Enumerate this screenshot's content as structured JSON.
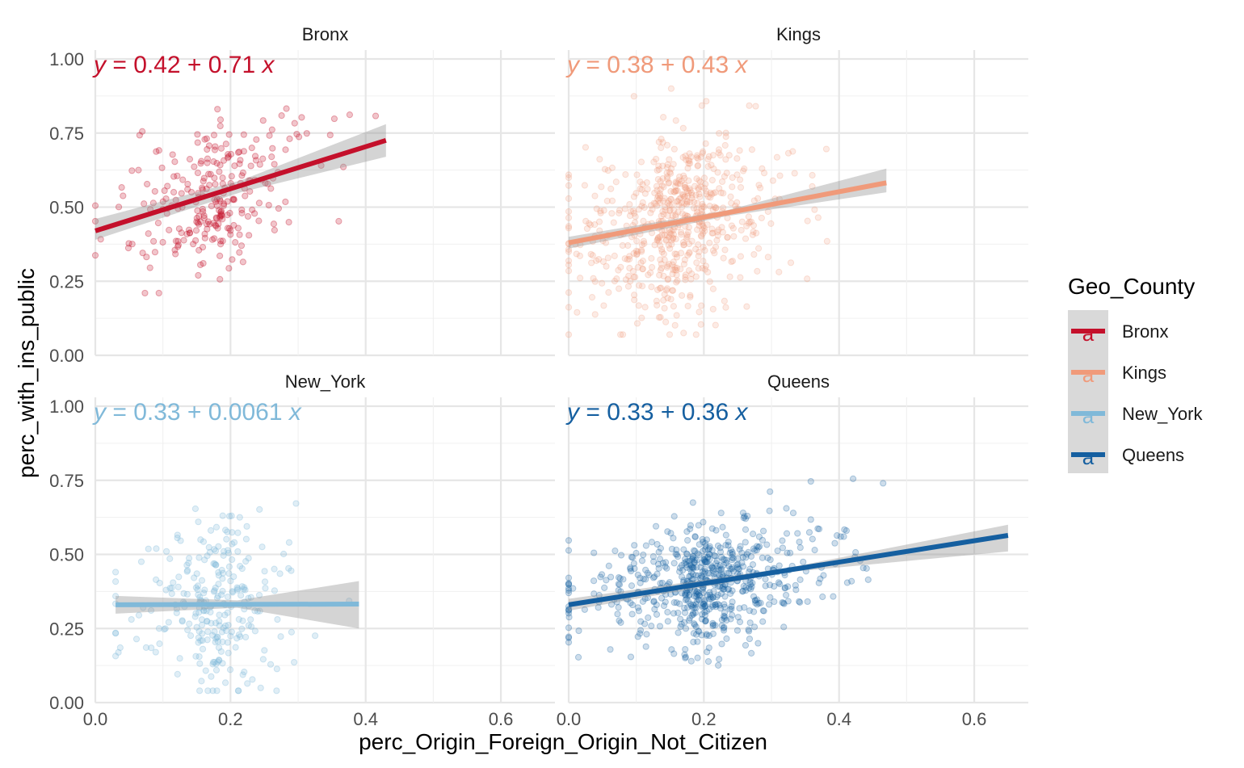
{
  "chart_data": {
    "type": "scatter",
    "facet_variable": "Geo_County",
    "xlabel": "perc_Origin_Foreign_Origin_Not_Citizen",
    "ylabel": "perc_with_ins_public",
    "xlim": [
      0.0,
      0.68
    ],
    "ylim": [
      0.0,
      1.03
    ],
    "x_ticks": [
      "0.0",
      "0.2",
      "0.4",
      "0.6"
    ],
    "x_tick_values": [
      0.0,
      0.2,
      0.4,
      0.6
    ],
    "y_ticks": [
      "0.00",
      "0.25",
      "0.50",
      "0.75",
      "1.00"
    ],
    "y_tick_values": [
      0.0,
      0.25,
      0.5,
      0.75,
      1.0
    ],
    "grid": true,
    "legend": {
      "title": "Geo_County",
      "position": "right",
      "key_glyph": "a",
      "entries": [
        {
          "label": "Bronx",
          "color": "#c4102b"
        },
        {
          "label": "Kings",
          "color": "#f09a7a"
        },
        {
          "label": "New_York",
          "color": "#80b9d9"
        },
        {
          "label": "Queens",
          "color": "#155fa0"
        }
      ]
    },
    "panels": [
      {
        "name": "Bronx",
        "color": "#c4102b",
        "equation_lhs": "y",
        "equation_rhs": "= 0.42 + 0.71",
        "equation_var": "x",
        "intercept": 0.42,
        "slope": 0.71,
        "fit_x_range": [
          0.0,
          0.43
        ],
        "ci": [
          [
            0.0,
            0.39,
            0.46
          ],
          [
            0.215,
            0.55,
            0.59
          ],
          [
            0.43,
            0.67,
            0.78
          ]
        ],
        "point_opacity": 0.35,
        "points": {
          "n": 260,
          "x_range": [
            0.0,
            0.44
          ],
          "x_center": 0.15,
          "x_spread": 0.08,
          "y_spread": 0.13,
          "y_min": 0.21,
          "y_max": 0.84,
          "seed": 11
        }
      },
      {
        "name": "Kings",
        "color": "#f09a7a",
        "equation_lhs": "y",
        "equation_rhs": "= 0.38 + 0.43",
        "equation_var": "x",
        "intercept": 0.38,
        "slope": 0.43,
        "fit_x_range": [
          0.0,
          0.47
        ],
        "ci": [
          [
            0.0,
            0.36,
            0.4
          ],
          [
            0.235,
            0.47,
            0.49
          ],
          [
            0.47,
            0.55,
            0.63
          ]
        ],
        "point_opacity": 0.28,
        "points": {
          "n": 620,
          "x_range": [
            0.0,
            0.47
          ],
          "x_center": 0.13,
          "x_spread": 0.09,
          "y_spread": 0.15,
          "y_min": 0.07,
          "y_max": 0.9,
          "seed": 23
        }
      },
      {
        "name": "New_York",
        "color": "#80b9d9",
        "equation_lhs": "y",
        "equation_rhs": "= 0.33 + 0.0061",
        "equation_var": "x",
        "intercept": 0.33,
        "slope": 0.0061,
        "fit_x_range": [
          0.03,
          0.39
        ],
        "ci": [
          [
            0.03,
            0.3,
            0.36
          ],
          [
            0.21,
            0.32,
            0.345
          ],
          [
            0.39,
            0.25,
            0.41
          ]
        ],
        "point_opacity": 0.35,
        "points": {
          "n": 270,
          "x_range": [
            0.03,
            0.4
          ],
          "x_center": 0.15,
          "x_spread": 0.07,
          "y_spread": 0.14,
          "y_min": 0.04,
          "y_max": 0.77,
          "seed": 37
        }
      },
      {
        "name": "Queens",
        "color": "#155fa0",
        "equation_lhs": "y",
        "equation_rhs": "= 0.33 + 0.36",
        "equation_var": "x",
        "intercept": 0.33,
        "slope": 0.36,
        "fit_x_range": [
          0.0,
          0.65
        ],
        "ci": [
          [
            0.0,
            0.31,
            0.35
          ],
          [
            0.325,
            0.44,
            0.455
          ],
          [
            0.65,
            0.51,
            0.6
          ]
        ],
        "point_opacity": 0.3,
        "points": {
          "n": 650,
          "x_range": [
            0.0,
            0.66
          ],
          "x_center": 0.17,
          "x_spread": 0.11,
          "y_spread": 0.1,
          "y_min": 0.07,
          "y_max": 0.91,
          "seed": 53
        }
      }
    ]
  }
}
